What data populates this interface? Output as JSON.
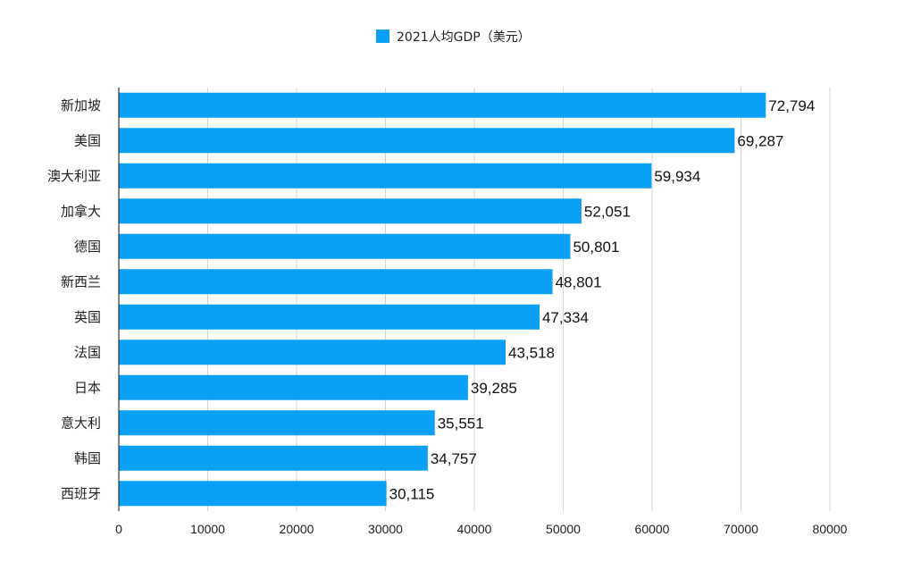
{
  "chart_data": {
    "type": "bar",
    "orientation": "horizontal",
    "categories": [
      "新加坡",
      "美国",
      "澳大利亚",
      "加拿大",
      "德国",
      "新西兰",
      "英国",
      "法国",
      "日本",
      "意大利",
      "韩国",
      "西班牙"
    ],
    "series": [
      {
        "name": "2021人均GDP（美元）",
        "color": "#0aa0f5",
        "values": [
          72794,
          69287,
          59934,
          52051,
          50801,
          48801,
          47334,
          43518,
          39285,
          35551,
          34757,
          30115
        ],
        "value_labels": [
          "72,794",
          "69,287",
          "59,934",
          "52,051",
          "50,801",
          "48,801",
          "47,334",
          "43,518",
          "39,285",
          "35,551",
          "34,757",
          "30,115"
        ]
      }
    ],
    "xlim": [
      0,
      80000
    ],
    "xticks": [
      0,
      10000,
      20000,
      30000,
      40000,
      50000,
      60000,
      70000,
      80000
    ],
    "xtick_labels": [
      "0",
      "10000",
      "20000",
      "30000",
      "40000",
      "50000",
      "60000",
      "70000",
      "80000"
    ],
    "grid": true,
    "legend_position": "top-center"
  }
}
